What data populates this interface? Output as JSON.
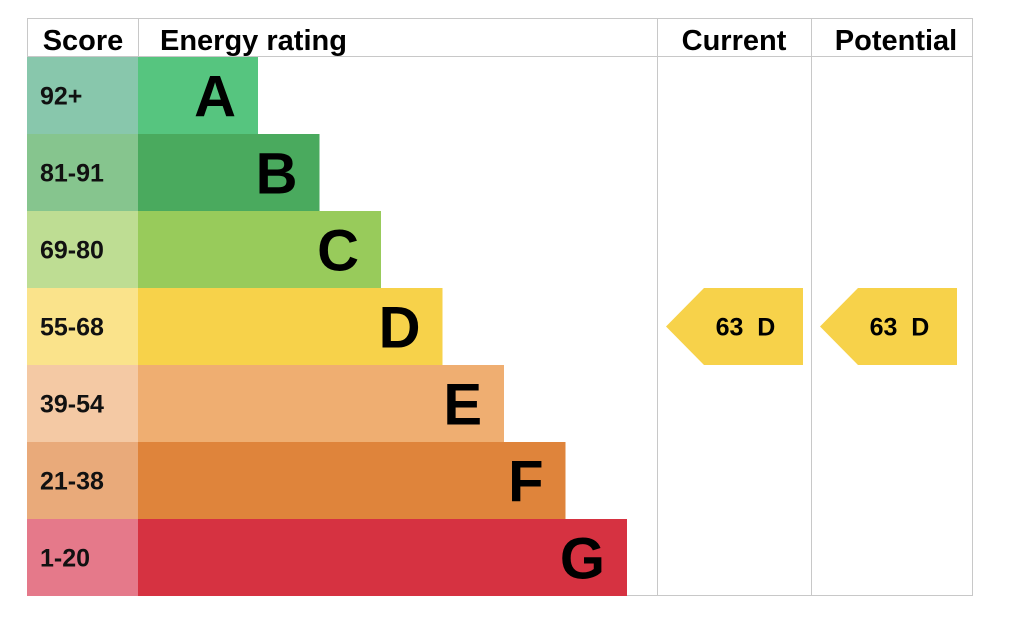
{
  "chart_data": {
    "type": "bar",
    "headers": {
      "score": "Score",
      "energy_rating": "Energy rating",
      "current": "Current",
      "potential": "Potential"
    },
    "bands": [
      {
        "letter": "A",
        "range": "92+",
        "color": "#56c57f",
        "score_bg": "#88c7ac"
      },
      {
        "letter": "B",
        "range": "81-91",
        "color": "#4aaa5e",
        "score_bg": "#86c58e"
      },
      {
        "letter": "C",
        "range": "69-80",
        "color": "#98cb5b",
        "score_bg": "#bedd93"
      },
      {
        "letter": "D",
        "range": "55-68",
        "color": "#f7d24a",
        "score_bg": "#fae38b"
      },
      {
        "letter": "E",
        "range": "39-54",
        "color": "#efae71",
        "score_bg": "#f4c9a4"
      },
      {
        "letter": "F",
        "range": "21-38",
        "color": "#df843b",
        "score_bg": "#e9aa7a"
      },
      {
        "letter": "G",
        "range": "1-20",
        "color": "#d63241",
        "score_bg": "#e5798a"
      }
    ],
    "current": {
      "value": 63,
      "band": "D",
      "label": "63  D"
    },
    "potential": {
      "value": 63,
      "band": "D",
      "label": "63  D"
    },
    "arrow_color": "#f7d24a"
  }
}
